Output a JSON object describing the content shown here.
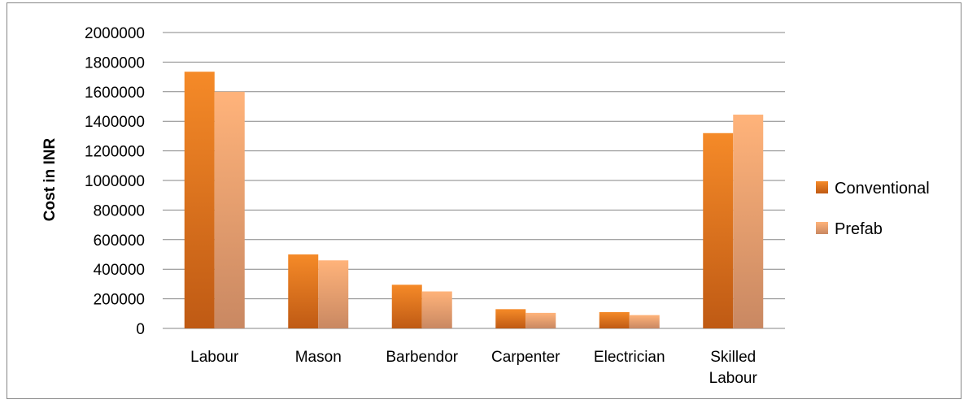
{
  "chart_data": {
    "type": "bar",
    "title": "",
    "xlabel": "",
    "ylabel": "Cost in INR",
    "ylim": [
      0,
      2000000
    ],
    "yticks": [
      0,
      200000,
      400000,
      600000,
      800000,
      1000000,
      1200000,
      1400000,
      1600000,
      1800000,
      2000000
    ],
    "grid": true,
    "legend_position": "right",
    "categories": [
      "Labour",
      "Mason",
      "Barbendor",
      "Carpenter",
      "Electrician",
      "Skilled Labour"
    ],
    "series": [
      {
        "name": "Conventional",
        "values": [
          1735000,
          500000,
          295000,
          130000,
          110000,
          1320000
        ],
        "color": "#E46C0A",
        "gradient": [
          "#F58A28",
          "#BF5A14"
        ]
      },
      {
        "name": "Prefab",
        "values": [
          1600000,
          460000,
          250000,
          105000,
          90000,
          1445000
        ],
        "color": "#F2A66E",
        "gradient": [
          "#FFB37A",
          "#C98862"
        ]
      }
    ]
  }
}
